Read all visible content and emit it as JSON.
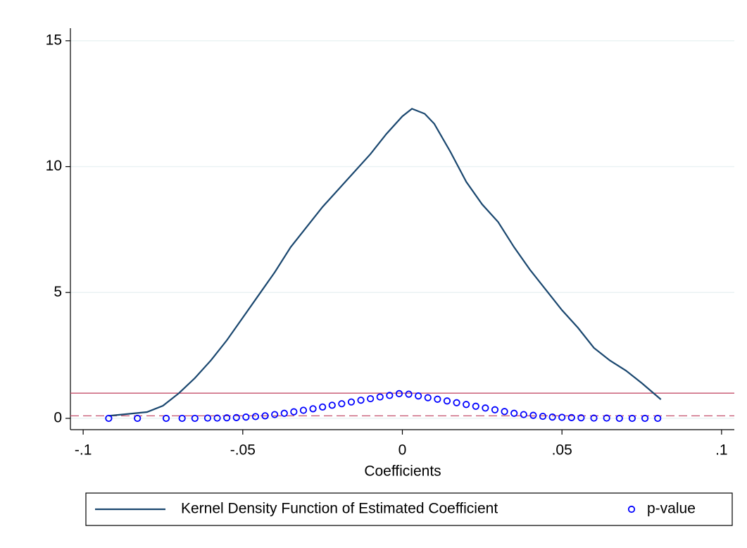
{
  "chart_data": {
    "type": "line",
    "x_label": "Coefficients",
    "xlim": [
      -0.104,
      0.104
    ],
    "xticks": [
      {
        "value": -0.1,
        "label": "-.1"
      },
      {
        "value": -0.05,
        "label": "-.05"
      },
      0,
      {
        "value": 0.05,
        "label": ".05"
      },
      {
        "value": 0.1,
        "label": ".1"
      }
    ],
    "ylim": [
      -0.45,
      15.5
    ],
    "yticks": [
      0,
      5,
      10,
      15
    ],
    "grid": true,
    "legend": "bottom",
    "reference_lines": [
      {
        "value": 1,
        "style": "solid",
        "color": "#c4506b"
      },
      {
        "value": 0.1,
        "style": "dashed",
        "color": "#c4506b"
      }
    ],
    "series": [
      {
        "name": "Kernel Density Function of Estimated Coefficient",
        "type": "line",
        "color": "#1a476f",
        "x": [
          -0.092,
          -0.08,
          -0.075,
          -0.07,
          -0.065,
          -0.06,
          -0.055,
          -0.05,
          -0.045,
          -0.04,
          -0.035,
          -0.03,
          -0.025,
          -0.02,
          -0.015,
          -0.01,
          -0.005,
          0,
          0.003,
          0.007,
          0.01,
          0.015,
          0.02,
          0.025,
          0.03,
          0.035,
          0.04,
          0.045,
          0.05,
          0.055,
          0.06,
          0.065,
          0.07,
          0.075,
          0.081
        ],
        "values": [
          0.1,
          0.25,
          0.5,
          1.0,
          1.6,
          2.3,
          3.1,
          4.0,
          4.9,
          5.8,
          6.8,
          7.6,
          8.4,
          9.1,
          9.8,
          10.5,
          11.3,
          12.0,
          12.3,
          12.1,
          11.7,
          10.6,
          9.4,
          8.5,
          7.8,
          6.8,
          5.9,
          5.1,
          4.3,
          3.6,
          2.8,
          2.3,
          1.9,
          1.4,
          0.75
        ]
      },
      {
        "name": "p-value",
        "type": "scatter",
        "color": "#0000ff",
        "x": [
          -0.092,
          -0.083,
          -0.074,
          -0.069,
          -0.065,
          -0.061,
          -0.058,
          -0.055,
          -0.052,
          -0.049,
          -0.046,
          -0.043,
          -0.04,
          -0.037,
          -0.034,
          -0.031,
          -0.028,
          -0.025,
          -0.022,
          -0.019,
          -0.016,
          -0.013,
          -0.01,
          -0.007,
          -0.004,
          -0.001,
          0.002,
          0.005,
          0.008,
          0.011,
          0.014,
          0.017,
          0.02,
          0.023,
          0.026,
          0.029,
          0.032,
          0.035,
          0.038,
          0.041,
          0.044,
          0.047,
          0.05,
          0.053,
          0.056,
          0.06,
          0.064,
          0.068,
          0.072,
          0.076,
          0.08
        ],
        "values": [
          0,
          0,
          0,
          0,
          0,
          0.01,
          0.01,
          0.02,
          0.03,
          0.05,
          0.07,
          0.1,
          0.15,
          0.2,
          0.26,
          0.32,
          0.38,
          0.45,
          0.52,
          0.58,
          0.65,
          0.72,
          0.78,
          0.85,
          0.91,
          0.98,
          0.96,
          0.89,
          0.82,
          0.76,
          0.69,
          0.62,
          0.55,
          0.48,
          0.41,
          0.34,
          0.27,
          0.2,
          0.15,
          0.12,
          0.08,
          0.05,
          0.04,
          0.03,
          0.02,
          0.01,
          0.01,
          0,
          0,
          0,
          0
        ]
      }
    ]
  }
}
